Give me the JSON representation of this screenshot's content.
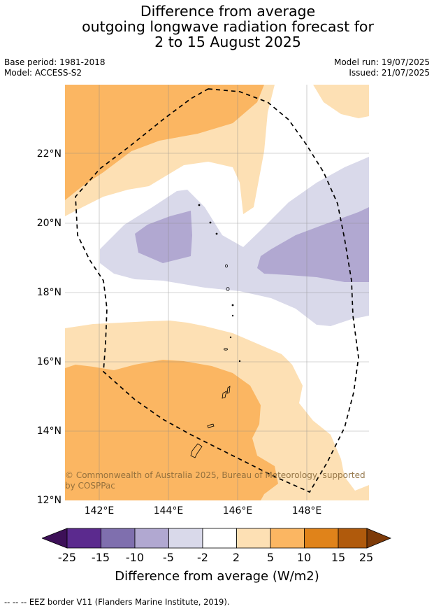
{
  "title": {
    "line1": "Difference from average",
    "line2": "outgoing longwave radiation forecast for",
    "line3": "2 to 15 August 2025"
  },
  "meta": {
    "base_period": "Base period: 1981-2018",
    "model": "Model: ACCESS-S2",
    "model_run": "Model run: 19/07/2025",
    "issued": "Issued: 21/07/2025"
  },
  "map": {
    "lat_labels": [
      "22°N",
      "20°N",
      "18°N",
      "16°N",
      "14°N",
      "12°N"
    ],
    "lon_labels": [
      "142°E",
      "144°E",
      "146°E",
      "148°E"
    ],
    "copyright": "© Commonwealth of Australia 2025, Bureau of Meteorology, supported by COSPPac"
  },
  "colorbar": {
    "ticks": [
      "-25",
      "-15",
      "-10",
      "-5",
      "-2",
      "2",
      "5",
      "10",
      "15",
      "25"
    ],
    "colors": [
      "#5b2a8e",
      "#7f6fae",
      "#b1a8d1",
      "#d9d9ea",
      "#ffffff",
      "#fde0b4",
      "#fbb662",
      "#e0831a",
      "#b05a0c"
    ],
    "under_color": "#3d1058",
    "over_color": "#7d3a08",
    "title": "Difference from average (W/m2)"
  },
  "footnote": "--  --  -- EEZ border V11 (Flanders Marine Institute, 2019)."
}
